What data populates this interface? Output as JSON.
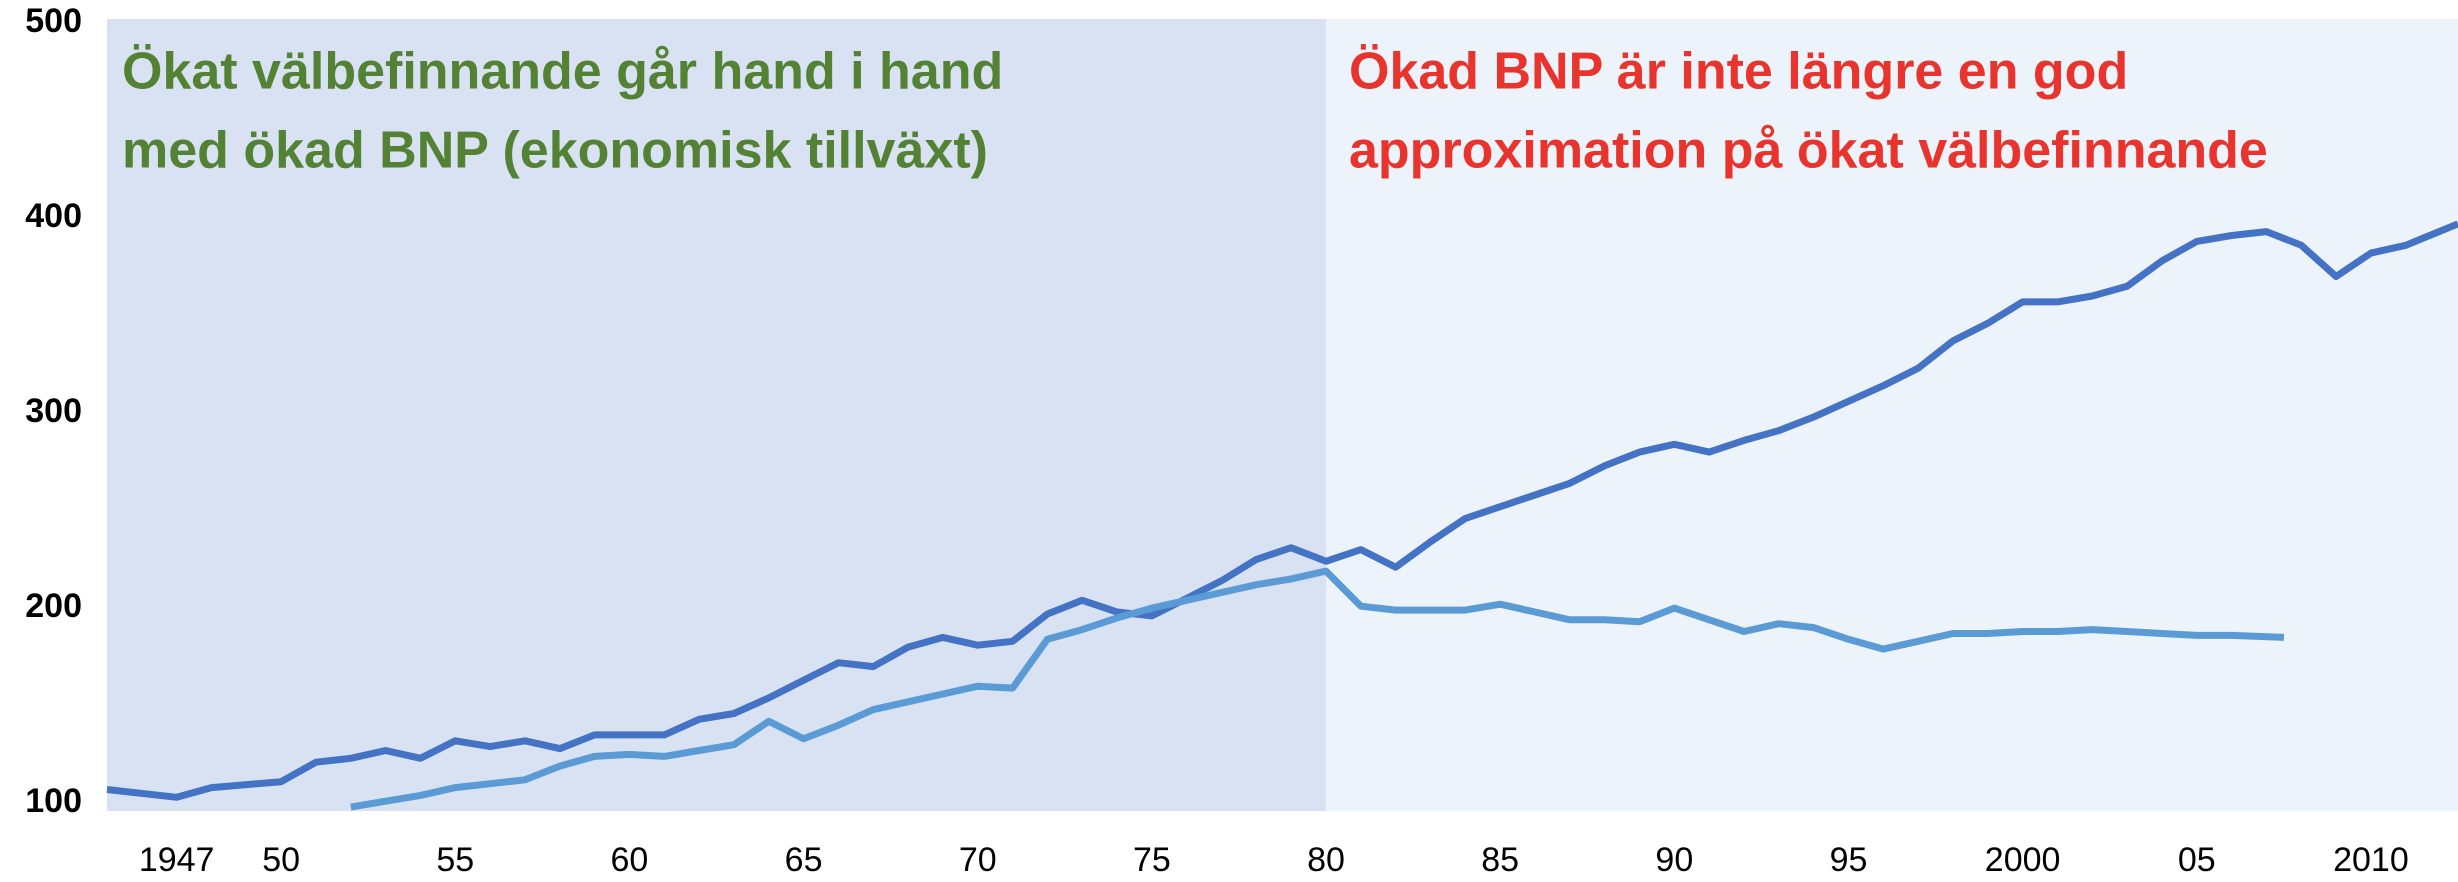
{
  "chart_data": {
    "type": "line",
    "annotations": [
      {
        "lines": [
          "Ökat välbefinnande går hand i hand",
          "med ökad BNP (ekonomisk tillväxt)"
        ],
        "color": "#548235"
      },
      {
        "lines": [
          "Ökad BNP är inte längre en god",
          "approximation på ökat välbefinnande"
        ],
        "color": "#e8342c"
      }
    ],
    "divider": 1980,
    "region_colors": [
      "#d9e2f3",
      "#edf3fb"
    ],
    "xlim": [
      1945,
      2012.5
    ],
    "xticks": [
      1947,
      {
        "value": 1950,
        "label": "50"
      },
      {
        "value": 1955,
        "label": "55"
      },
      {
        "value": 1960,
        "label": "60"
      },
      {
        "value": 1965,
        "label": "65"
      },
      {
        "value": 1970,
        "label": "70"
      },
      {
        "value": 1975,
        "label": "75"
      },
      {
        "value": 1980,
        "label": "80"
      },
      {
        "value": 1985,
        "label": "85"
      },
      {
        "value": 1990,
        "label": "90"
      },
      {
        "value": 1995,
        "label": "95"
      },
      2000,
      {
        "value": 2005,
        "label": "05"
      },
      2010
    ],
    "ylim": [
      96,
      502
    ],
    "yticks": [
      100,
      200,
      300,
      400,
      500
    ],
    "grid": false,
    "series": [
      {
        "color": "#4472c4",
        "x": [
          1945,
          1947,
          1948,
          1950,
          1951,
          1952,
          1953,
          1954,
          1955,
          1956,
          1957,
          1958,
          1959,
          1960,
          1961,
          1962,
          1963,
          1964,
          1965,
          1966,
          1967,
          1968,
          1969,
          1970,
          1971,
          1972,
          1973,
          1974,
          1975,
          1976,
          1977,
          1978,
          1979,
          1980,
          1981,
          1982,
          1983,
          1984,
          1985,
          1986,
          1987,
          1988,
          1989,
          1990,
          1991,
          1992,
          1993,
          1994,
          1995,
          1996,
          1997,
          1998,
          1999,
          2000,
          2001,
          2002,
          2003,
          2004,
          2005,
          2006,
          2007,
          2008,
          2009,
          2010,
          2011,
          2012.5
        ],
        "values": [
          107,
          103,
          108,
          111,
          121,
          123,
          127,
          123,
          132,
          129,
          132,
          128,
          135,
          135,
          135,
          143,
          146,
          154,
          163,
          172,
          170,
          180,
          185,
          181,
          183,
          197,
          204,
          198,
          196,
          205,
          214,
          225,
          231,
          224,
          230,
          221,
          234,
          246,
          252,
          258,
          264,
          273,
          280,
          284,
          280,
          286,
          291,
          298,
          306,
          314,
          323,
          337,
          346,
          357,
          357,
          360,
          365,
          378,
          388,
          391,
          393,
          386,
          370,
          382,
          386,
          397
        ]
      },
      {
        "color": "#5b9bd5",
        "x": [
          1952,
          1953,
          1954,
          1955,
          1956,
          1957,
          1958,
          1959,
          1960,
          1961,
          1962,
          1963,
          1964,
          1965,
          1966,
          1967,
          1968,
          1969,
          1970,
          1971,
          1972,
          1973,
          1974,
          1975,
          1976,
          1977,
          1978,
          1979,
          1980,
          1981,
          1982,
          1983,
          1984,
          1985,
          1986,
          1987,
          1988,
          1989,
          1990,
          1991,
          1992,
          1993,
          1994,
          1995,
          1996,
          1997,
          1998,
          1999,
          2000,
          2001,
          2002,
          2003,
          2004,
          2005,
          2006,
          2007.5
        ],
        "values": [
          98,
          101,
          104,
          108,
          110,
          112,
          119,
          124,
          125,
          124,
          127,
          130,
          142,
          133,
          140,
          148,
          152,
          156,
          160,
          159,
          184,
          189,
          195,
          200,
          204,
          208,
          212,
          215,
          219,
          201,
          199,
          199,
          199,
          202,
          198,
          194,
          194,
          193,
          200,
          194,
          188,
          192,
          190,
          184,
          179,
          183,
          187,
          187,
          188,
          188,
          189,
          188,
          187,
          186,
          186,
          185
        ]
      }
    ]
  }
}
